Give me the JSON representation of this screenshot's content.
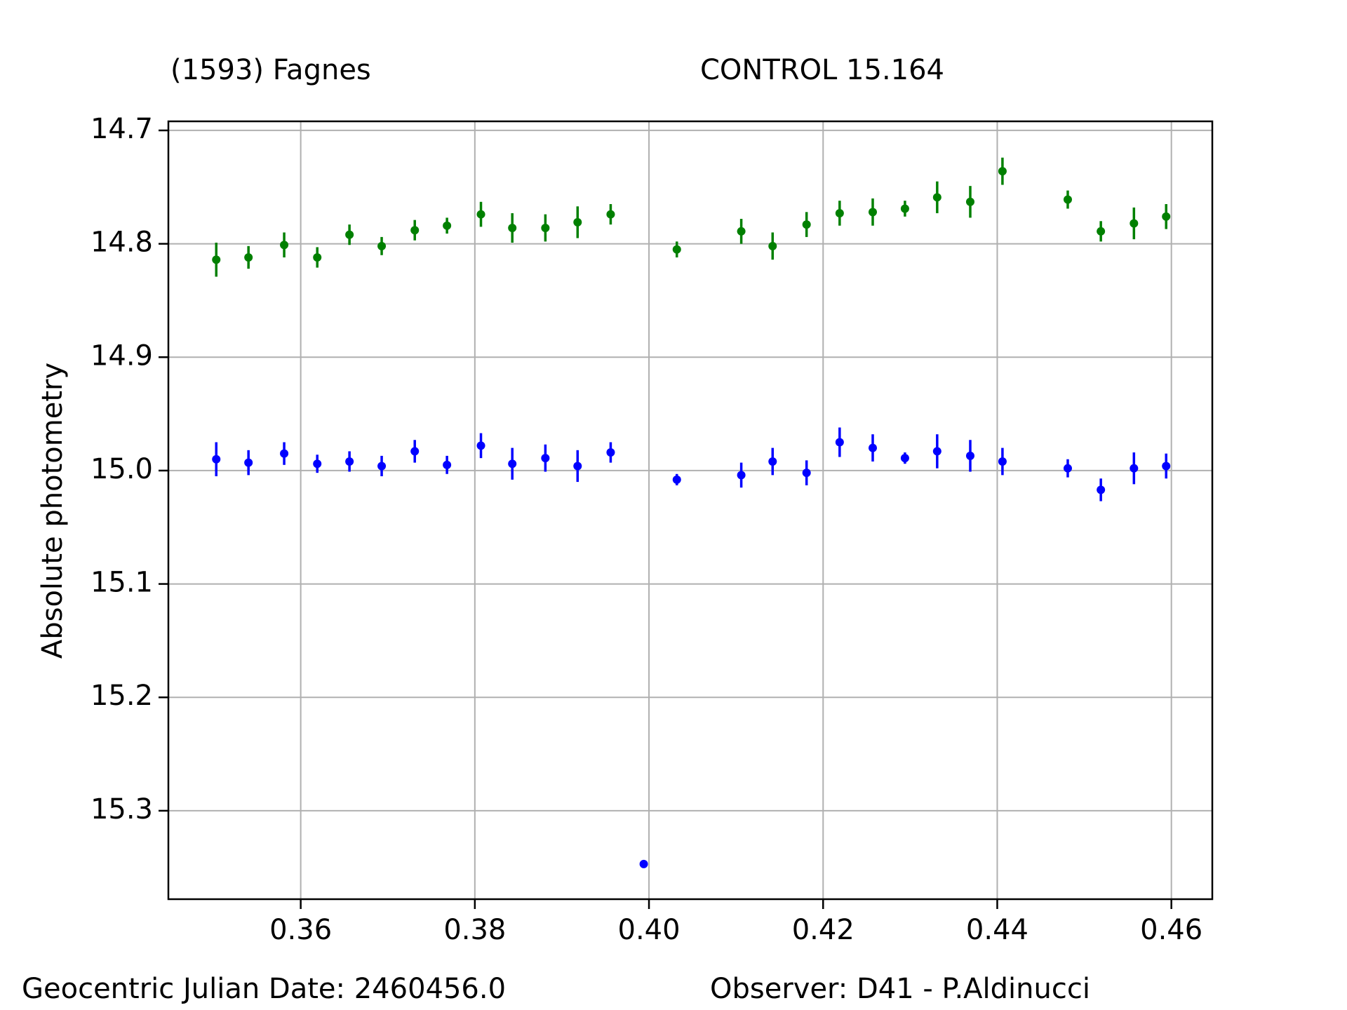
{
  "chart_data": {
    "type": "errorbar",
    "ylabel": "Absolute photometry",
    "annotations": [
      "Geocentric Julian Date: 2460456.0",
      "Observer: D41 - P.Aldinucci"
    ],
    "xlim": [
      0.3448,
      0.4647
    ],
    "xticks": [
      0.36,
      0.38,
      {
        "value": 0.4,
        "label": "0.40"
      },
      0.42,
      0.44,
      0.46
    ],
    "ylim": [
      15.378,
      14.692
    ],
    "yticks": [
      14.7,
      14.8,
      14.9,
      {
        "value": 15,
        "label": "15.0"
      },
      15.1,
      15.2,
      15.3
    ],
    "grid": true,
    "series": [
      {
        "name": "(1593) Fagnes",
        "color": "#008000",
        "x": [
          0.3503,
          0.354,
          0.3581,
          0.3619,
          0.3656,
          0.3693,
          0.3731,
          0.3768,
          0.3807,
          0.3843,
          0.3881,
          0.3918,
          0.3956,
          0.4032,
          0.4106,
          0.4142,
          0.4181,
          0.4219,
          0.4257,
          0.4294,
          0.4331,
          0.4369,
          0.4406,
          0.4481,
          0.4519,
          0.4557,
          0.4594
        ],
        "values": [
          14.814,
          14.812,
          14.801,
          14.812,
          14.792,
          14.802,
          14.788,
          14.784,
          14.774,
          14.786,
          14.786,
          14.781,
          14.774,
          14.805,
          14.789,
          14.802,
          14.783,
          14.773,
          14.772,
          14.769,
          14.759,
          14.763,
          14.736,
          14.761,
          14.789,
          14.782,
          14.776
        ],
        "errors": [
          0.015,
          0.01,
          0.011,
          0.009,
          0.009,
          0.008,
          0.009,
          0.007,
          0.011,
          0.013,
          0.012,
          0.014,
          0.009,
          0.007,
          0.011,
          0.012,
          0.011,
          0.011,
          0.012,
          0.007,
          0.014,
          0.014,
          0.012,
          0.008,
          0.009,
          0.014,
          0.011
        ]
      },
      {
        "name": "CONTROL 15.164",
        "color": "#0000ff",
        "x": [
          0.3503,
          0.354,
          0.3581,
          0.3619,
          0.3656,
          0.3693,
          0.3731,
          0.3768,
          0.3807,
          0.3843,
          0.3881,
          0.3918,
          0.3956,
          0.3994,
          0.4032,
          0.4106,
          0.4142,
          0.4181,
          0.4219,
          0.4257,
          0.4294,
          0.4331,
          0.4369,
          0.4406,
          0.4481,
          0.4519,
          0.4557,
          0.4594
        ],
        "values": [
          14.99,
          14.993,
          14.985,
          14.994,
          14.992,
          14.996,
          14.983,
          14.995,
          14.978,
          14.994,
          14.989,
          14.996,
          14.984,
          15.347,
          15.008,
          15.004,
          14.992,
          15.002,
          14.975,
          14.98,
          14.989,
          14.983,
          14.987,
          14.992,
          14.998,
          15.017,
          14.998,
          14.996
        ],
        "errors": [
          0.015,
          0.011,
          0.01,
          0.008,
          0.009,
          0.009,
          0.01,
          0.008,
          0.011,
          0.014,
          0.012,
          0.014,
          0.009,
          null,
          0.005,
          0.011,
          0.012,
          0.011,
          0.013,
          0.012,
          0.005,
          0.015,
          0.014,
          0.012,
          0.008,
          0.01,
          0.014,
          0.011
        ]
      }
    ]
  }
}
